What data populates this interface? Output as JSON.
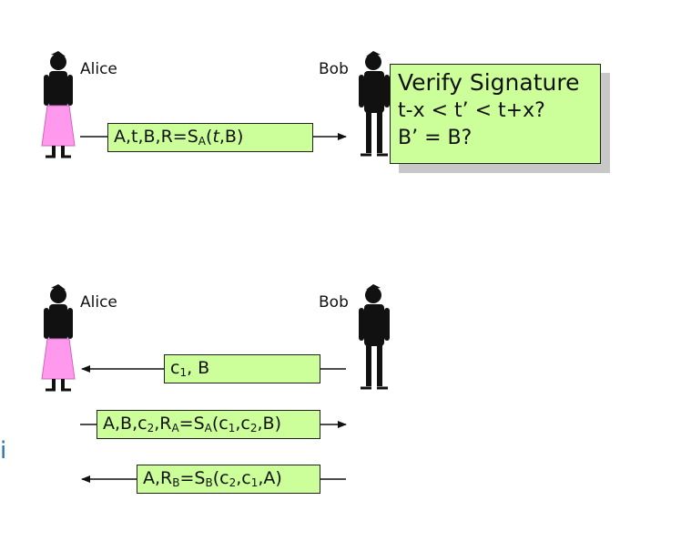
{
  "scene1": {
    "alice_label": "Alice",
    "bob_label": "Bob",
    "message": {
      "text_a": "A,t,B,R=S",
      "sub": "A",
      "text_b": "(",
      "italic": "t",
      "text_c": ",B)"
    },
    "verify": {
      "line1": "Verify Signature",
      "line2": "t-x < t’ < t+x?",
      "line3": "B’ = B?"
    }
  },
  "scene2": {
    "alice_label": "Alice",
    "bob_label": "Bob",
    "msg1": {
      "a": "c",
      "s1": "1",
      "b": ", B"
    },
    "msg2": {
      "a": "A,B,c",
      "s1": "2",
      "b": ",R",
      "s2": "A",
      "c": "=S",
      "s3": "A",
      "d": "(c",
      "s4": "1",
      "e": ",c",
      "s5": "2",
      "f": ",B)"
    },
    "msg3": {
      "a": "A,R",
      "s1": "B",
      "b": "=S",
      "s2": "B",
      "c": "(c",
      "s3": "2",
      "d": ",c",
      "s4": "1",
      "e": ",A)"
    }
  },
  "colors": {
    "message_fill": "#ccff99",
    "alice_dress": "#ff99ee",
    "shadow": "#c8c8c8"
  },
  "edge_glyph": "i"
}
